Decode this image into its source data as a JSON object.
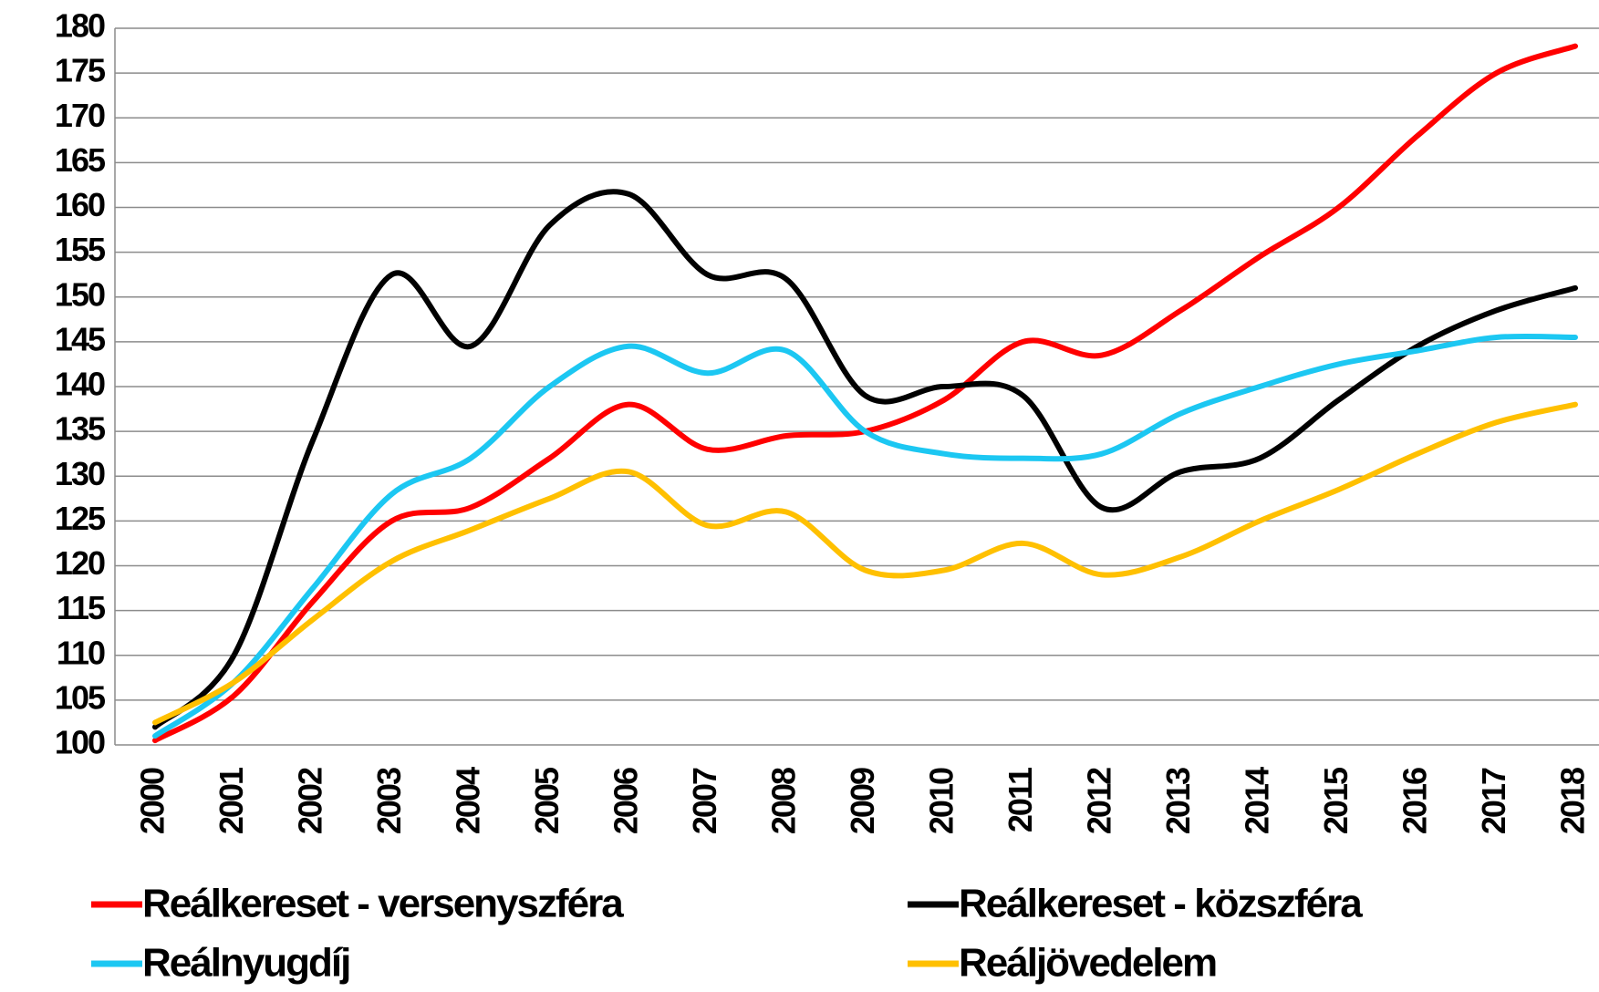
{
  "chart_data": {
    "type": "line",
    "categories": [
      "2000",
      "2001",
      "2002",
      "2003",
      "2004",
      "2005",
      "2006",
      "2007",
      "2008",
      "2009",
      "2010",
      "2011",
      "2012",
      "2013",
      "2014",
      "2015",
      "2016",
      "2017",
      "2018"
    ],
    "series": [
      {
        "name": "Reálkereset - versenyszféra",
        "color": "#ff0000",
        "values": [
          100.5,
          105.5,
          116,
          125,
          126.5,
          132,
          138,
          133,
          134.5,
          135,
          138.5,
          145,
          143.5,
          148.5,
          154.5,
          160,
          168,
          175,
          178
        ]
      },
      {
        "name": "Reálkereset - közszféra",
        "color": "#000000",
        "values": [
          102,
          110,
          134,
          152.5,
          144.5,
          158,
          161.5,
          152.5,
          152,
          139,
          140,
          139,
          126.5,
          130.5,
          132,
          138.5,
          144.5,
          148.5,
          151
        ]
      },
      {
        "name": "Reálnyugdíj",
        "color": "#1cc7f2",
        "values": [
          101,
          107,
          117.5,
          128,
          132,
          140,
          144.5,
          141.5,
          144,
          135,
          132.5,
          132,
          132.5,
          137,
          140,
          142.5,
          144,
          145.5,
          145.5
        ]
      },
      {
        "name": "Reáljövedelem",
        "color": "#ffc000",
        "values": [
          102.5,
          107,
          114,
          120.5,
          124,
          127.5,
          130.5,
          124.5,
          126,
          119.5,
          119.5,
          122.5,
          119,
          121,
          125,
          128.5,
          132.5,
          136,
          138
        ]
      }
    ],
    "ylim": [
      100,
      180
    ],
    "yticks": [
      100,
      105,
      110,
      115,
      120,
      125,
      130,
      135,
      140,
      145,
      150,
      155,
      160,
      165,
      170,
      175,
      180
    ],
    "grid": true,
    "legend": "bottom"
  }
}
